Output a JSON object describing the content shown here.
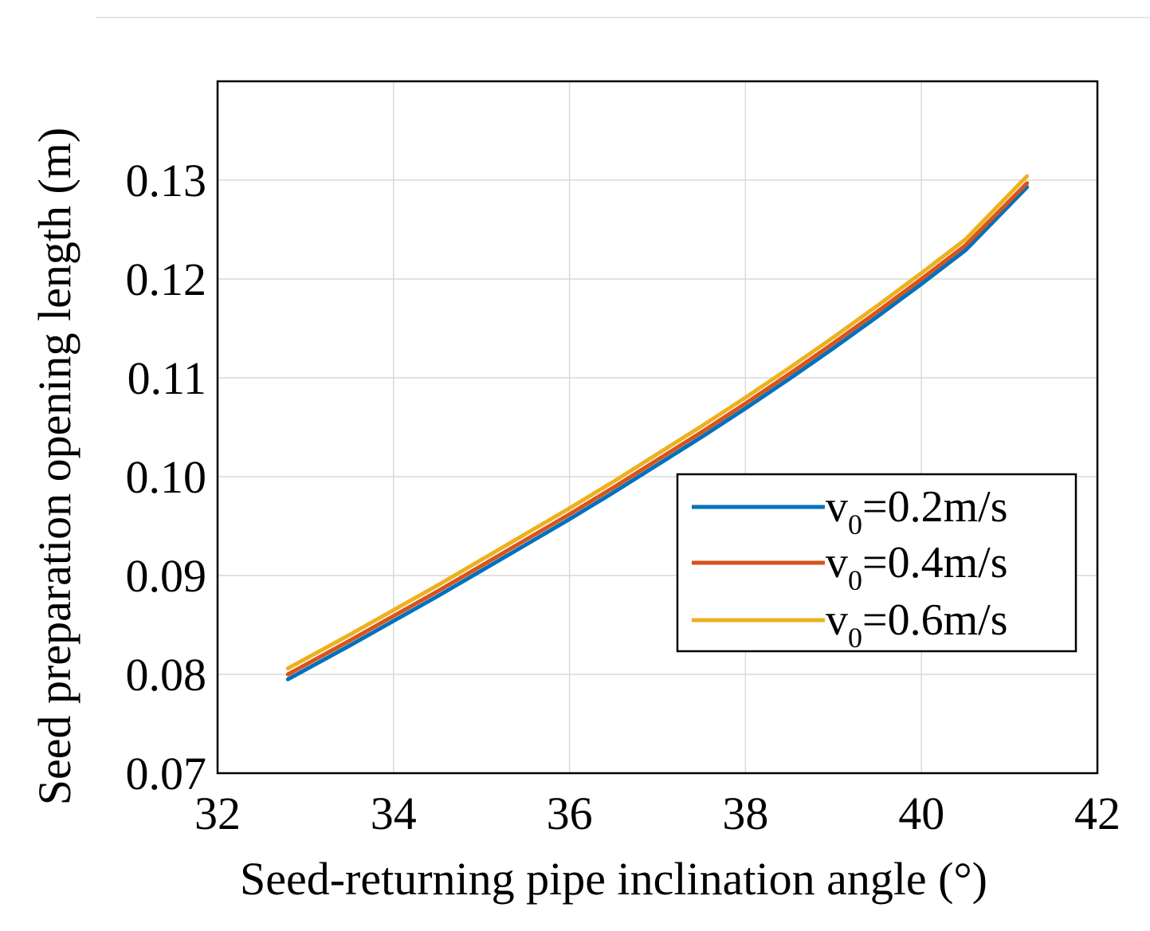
{
  "chart_data": {
    "type": "line",
    "xlabel": "Seed-returning pipe inclination angle (°)",
    "ylabel": "Seed preparation opening length (m)",
    "xlim": [
      32,
      42
    ],
    "ylim": [
      0.07,
      0.14
    ],
    "xticks": [
      32,
      34,
      36,
      38,
      40,
      42
    ],
    "xtick_labels": [
      "32",
      "34",
      "36",
      "38",
      "40",
      "42"
    ],
    "yticks": [
      0.07,
      0.08,
      0.09,
      0.1,
      0.11,
      0.12,
      0.13
    ],
    "ytick_labels": [
      "0.07",
      "0.08",
      "0.09",
      "0.10",
      "0.11",
      "0.12",
      "0.13"
    ],
    "grid": true,
    "legend_position": "center-right",
    "x": [
      32.8,
      33.5,
      34.0,
      34.5,
      35.0,
      35.5,
      36.0,
      36.5,
      37.0,
      37.5,
      38.0,
      38.5,
      39.0,
      39.5,
      40.0,
      40.5,
      41.2
    ],
    "series": [
      {
        "name": "v0=0.2m/s",
        "legend_main": "v",
        "legend_sub": "0",
        "legend_rest": "=0.2m/s",
        "color": "#0072BD",
        "values": [
          0.0795,
          0.0829,
          0.0854,
          0.0879,
          0.0905,
          0.0931,
          0.0957,
          0.0984,
          0.1012,
          0.104,
          0.1069,
          0.1099,
          0.113,
          0.1162,
          0.1195,
          0.1229,
          0.1293
        ]
      },
      {
        "name": "v0=0.4m/s",
        "legend_main": "v",
        "legend_sub": "0",
        "legend_rest": "=0.4m/s",
        "color": "#D95319",
        "values": [
          0.08,
          0.0834,
          0.0859,
          0.0884,
          0.091,
          0.0936,
          0.0962,
          0.0989,
          0.1017,
          0.1045,
          0.1074,
          0.1104,
          0.1135,
          0.1167,
          0.12,
          0.1234,
          0.1297
        ]
      },
      {
        "name": "v0=0.6m/s",
        "legend_main": "v",
        "legend_sub": "0",
        "legend_rest": "=0.6m/s",
        "color": "#EDB120",
        "values": [
          0.0806,
          0.084,
          0.0865,
          0.089,
          0.0916,
          0.0942,
          0.0968,
          0.0995,
          0.1023,
          0.1051,
          0.108,
          0.111,
          0.1141,
          0.1173,
          0.1206,
          0.124,
          0.1304
        ]
      }
    ]
  }
}
